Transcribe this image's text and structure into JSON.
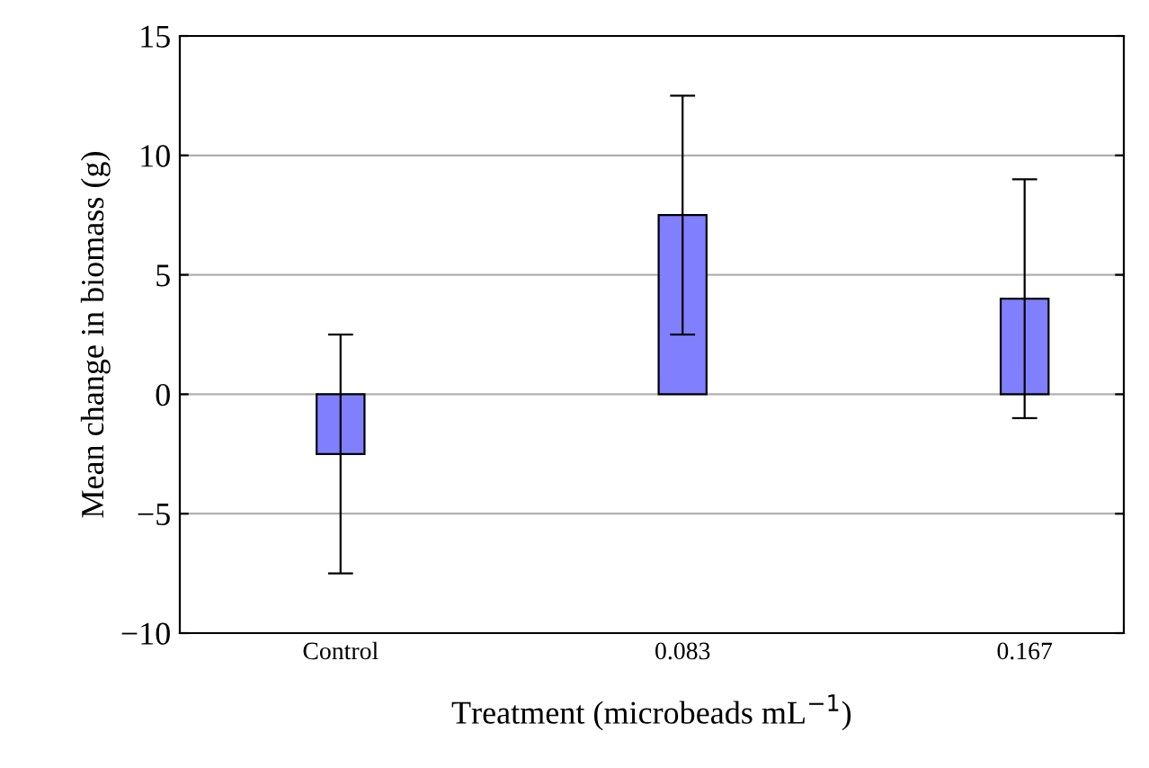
{
  "chart_data": {
    "type": "bar",
    "xlabel": "Treatment (microbeads mL$^{−1}$)",
    "ylabel": "Mean change in biomass (g)",
    "categories": [
      "Control",
      "0.083",
      "0.167"
    ],
    "values": [
      -2.5,
      7.5,
      4.0
    ],
    "errors": [
      5,
      5,
      5
    ],
    "color": "#8080ff",
    "ylim": [
      -10,
      15
    ],
    "yticks": [
      {
        "value": -10,
        "label": "−10"
      },
      {
        "value": -5,
        "label": "−5"
      },
      0,
      5,
      10,
      15
    ],
    "grid": "y"
  }
}
